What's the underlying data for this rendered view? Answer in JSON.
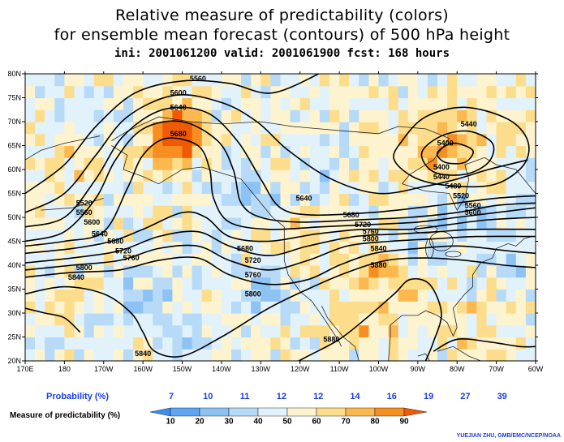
{
  "title": {
    "line1": "Relative measure of predictability (colors)",
    "line2": "for ensemble mean forecast (contours) of 500 hPa height",
    "line3": "ini: 2001061200 valid: 2001061900 fcst: 168 hours"
  },
  "map": {
    "lon_labels": [
      "170E",
      "180",
      "170W",
      "160W",
      "150W",
      "140W",
      "130W",
      "120W",
      "110W",
      "100W",
      "90W",
      "80W",
      "70W",
      "60W"
    ],
    "lat_labels": [
      "80N",
      "75N",
      "70N",
      "65N",
      "60N",
      "55N",
      "50N",
      "45N",
      "40N",
      "35N",
      "30N",
      "25N",
      "20N"
    ],
    "contour_labels": [
      {
        "text": "5560",
        "lon": -146,
        "lat": 79
      },
      {
        "text": "5600",
        "lon": -151,
        "lat": 76
      },
      {
        "text": "5640",
        "lon": -151,
        "lat": 73
      },
      {
        "text": "5680",
        "lon": -151,
        "lat": 67.5
      },
      {
        "text": "5520",
        "lon": -175,
        "lat": 53
      },
      {
        "text": "5560",
        "lon": -175,
        "lat": 51
      },
      {
        "text": "5600",
        "lon": -173,
        "lat": 49
      },
      {
        "text": "5640",
        "lon": -171,
        "lat": 46.5
      },
      {
        "text": "5680",
        "lon": -167,
        "lat": 45
      },
      {
        "text": "5720",
        "lon": -165,
        "lat": 43
      },
      {
        "text": "5760",
        "lon": -163,
        "lat": 41.5
      },
      {
        "text": "5800",
        "lon": -175,
        "lat": 39.5
      },
      {
        "text": "5840",
        "lon": -177,
        "lat": 37.5
      },
      {
        "text": "5840",
        "lon": -160,
        "lat": 21.5
      },
      {
        "text": "5680",
        "lon": -134,
        "lat": 43.5
      },
      {
        "text": "5720",
        "lon": -132,
        "lat": 41
      },
      {
        "text": "5760",
        "lon": -132,
        "lat": 38
      },
      {
        "text": "5800",
        "lon": -132,
        "lat": 34
      },
      {
        "text": "5640",
        "lon": -119,
        "lat": 54
      },
      {
        "text": "5680",
        "lon": -107,
        "lat": 50.5
      },
      {
        "text": "5720",
        "lon": -104,
        "lat": 48.5
      },
      {
        "text": "5760",
        "lon": -102,
        "lat": 47
      },
      {
        "text": "5800",
        "lon": -102,
        "lat": 45.5
      },
      {
        "text": "5840",
        "lon": -100,
        "lat": 43.5
      },
      {
        "text": "5880",
        "lon": -100,
        "lat": 40
      },
      {
        "text": "5880",
        "lon": -112,
        "lat": 24.5
      },
      {
        "text": "5440",
        "lon": -77,
        "lat": 69.5
      },
      {
        "text": "5400",
        "lon": -83,
        "lat": 65.5
      },
      {
        "text": "5400",
        "lon": -84,
        "lat": 60.5
      },
      {
        "text": "5440",
        "lon": -84,
        "lat": 58.5
      },
      {
        "text": "5480",
        "lon": -81,
        "lat": 56.5
      },
      {
        "text": "5520",
        "lon": -79,
        "lat": 54.5
      },
      {
        "text": "5560",
        "lon": -76,
        "lat": 52.5
      },
      {
        "text": "5600",
        "lon": -76,
        "lat": 51
      }
    ]
  },
  "legend": {
    "probability_label": "Probability (%)",
    "probability_values": [
      "7",
      "10",
      "11",
      "12",
      "12",
      "14",
      "16",
      "19",
      "27",
      "39"
    ],
    "measure_label": "Measure of predictability (%)",
    "measure_values": [
      "10",
      "20",
      "30",
      "40",
      "50",
      "60",
      "70",
      "80",
      "90"
    ],
    "colors": [
      "#3d8ef0",
      "#5ea6f2",
      "#8cc2f4",
      "#b6daf7",
      "#e2f2fb",
      "#fdf3cf",
      "#fcdd8c",
      "#fab84f",
      "#f78e22",
      "#f05a05"
    ]
  },
  "credit": "YUEJIAN ZHU, GMB/EMC/NCEP/NOAA"
}
